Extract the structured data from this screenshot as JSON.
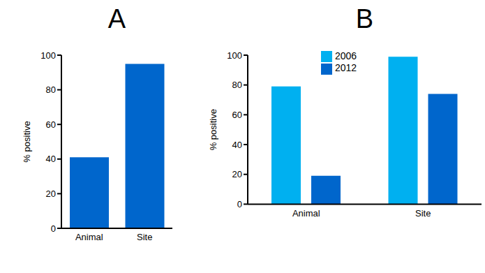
{
  "chart_data": [
    {
      "type": "bar",
      "title": "A",
      "ylabel": "% positive",
      "categories": [
        "Animal",
        "Site"
      ],
      "values": [
        41,
        95
      ],
      "color": "#0066cc",
      "ylim": [
        0,
        100
      ],
      "yticks": [
        0,
        20,
        40,
        60,
        80,
        100
      ],
      "grid": false
    },
    {
      "type": "bar",
      "title": "B",
      "ylabel": "% positive",
      "categories": [
        "Animal",
        "Site"
      ],
      "series": [
        {
          "name": "2006",
          "color": "#00b0f0",
          "values": [
            79,
            99
          ]
        },
        {
          "name": "2012",
          "color": "#0066cc",
          "values": [
            19,
            74
          ]
        }
      ],
      "ylim": [
        0,
        100
      ],
      "yticks": [
        0,
        20,
        40,
        60,
        80,
        100
      ],
      "grid": false,
      "legend": "upper center"
    }
  ]
}
